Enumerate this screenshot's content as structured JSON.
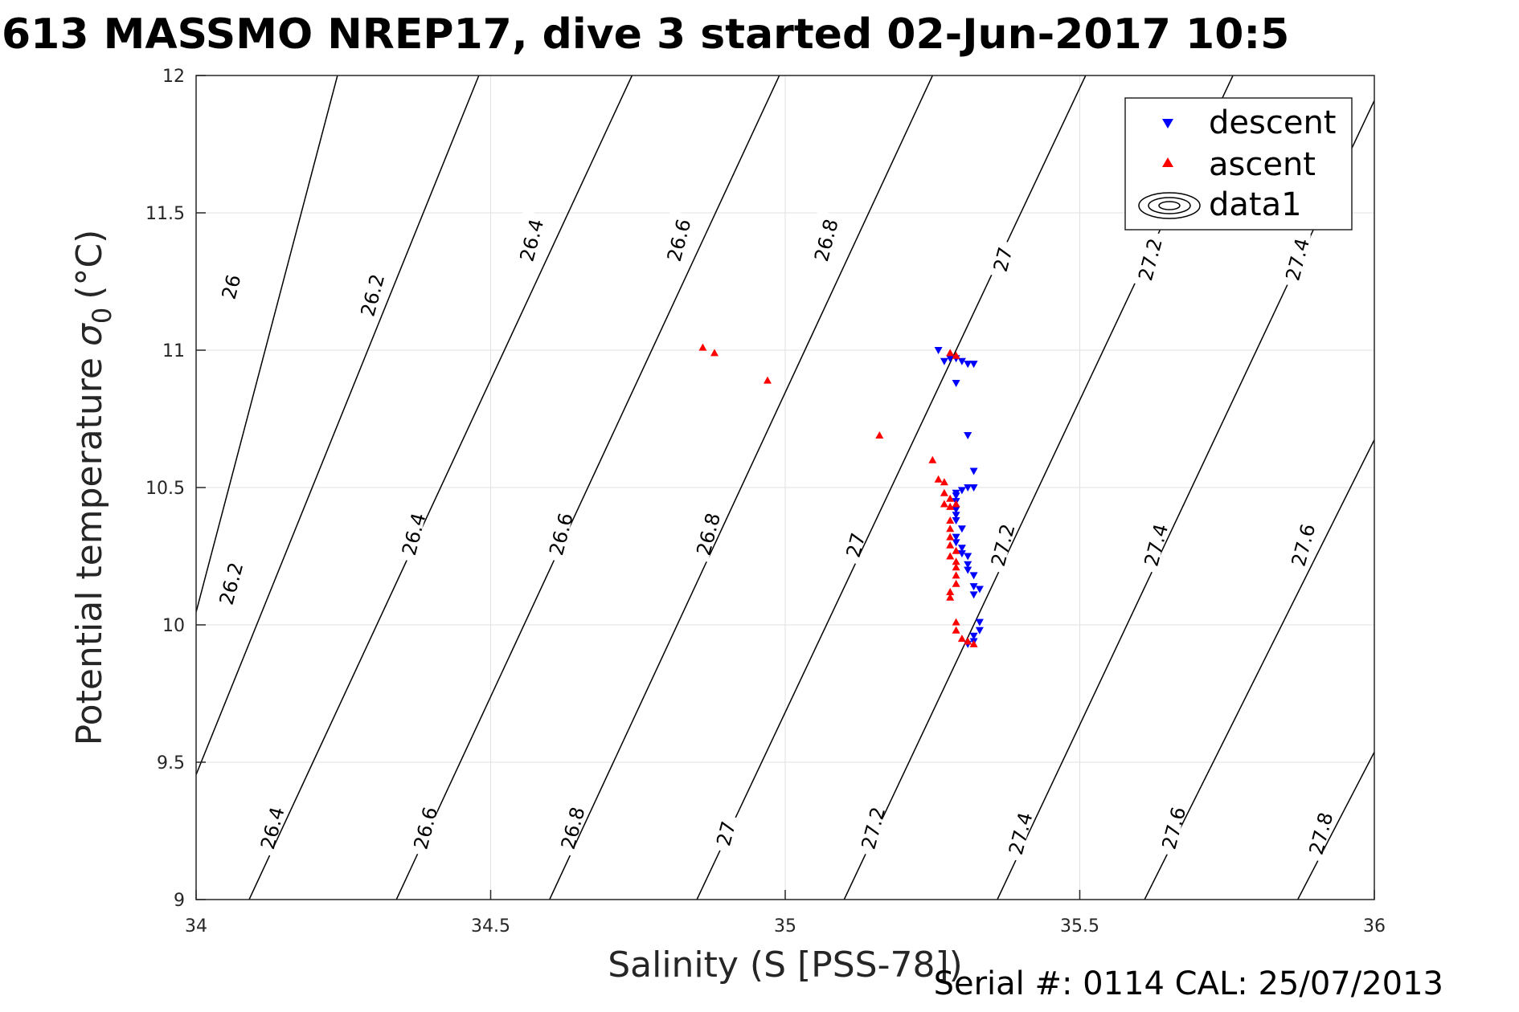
{
  "chart_data": {
    "type": "scatter",
    "title": "613 MASSMO NREP17, dive 3 started 02-Jun-2017 10:5",
    "xlabel": "Salinity (S [PSS-78])",
    "ylabel_main": "Potential temperature",
    "ylabel_sigma": "σ",
    "ylabel_sub": "0",
    "ylabel_unit": "(°C)",
    "footer": "Serial #: 0114  CAL: 25/07/2013",
    "xlim": [
      34,
      36
    ],
    "ylim": [
      9,
      12
    ],
    "xticks": [
      34,
      34.5,
      35,
      35.5,
      36
    ],
    "xtick_labels": [
      "34",
      "34.5",
      "35",
      "35.5",
      "36"
    ],
    "yticks": [
      9,
      9.5,
      10,
      10.5,
      11,
      11.5,
      12
    ],
    "ytick_labels": [
      "9",
      "9.5",
      "10",
      "10.5",
      "11",
      "11.5",
      "12"
    ],
    "grid": true,
    "legend_position": "top-right",
    "legend": [
      "descent",
      "ascent",
      "data1"
    ],
    "colors": {
      "descent": "#0000ff",
      "ascent": "#ff0000",
      "contour": "#000000",
      "grid": "#e0e0e0"
    },
    "contours": {
      "levels": [
        26,
        26.2,
        26.4,
        26.6,
        26.8,
        27,
        27.2,
        27.4,
        27.6,
        27.8
      ],
      "lines": [
        {
          "level": 26,
          "points": [
            [
              33.95,
              9.64
            ],
            [
              34.24,
              12
            ]
          ]
        },
        {
          "level": 26.2,
          "points": [
            [
              33.95,
              9.19
            ],
            [
              34.48,
              12
            ]
          ]
        },
        {
          "level": 26.4,
          "points": [
            [
              34.09,
              9
            ],
            [
              34.74,
              12
            ]
          ]
        },
        {
          "level": 26.6,
          "points": [
            [
              34.34,
              9
            ],
            [
              34.99,
              12
            ]
          ]
        },
        {
          "level": 26.8,
          "points": [
            [
              34.6,
              9
            ],
            [
              35.25,
              12
            ]
          ]
        },
        {
          "level": 27,
          "points": [
            [
              34.85,
              9
            ],
            [
              35.51,
              12
            ]
          ]
        },
        {
          "level": 27.2,
          "points": [
            [
              35.1,
              9
            ],
            [
              35.76,
              12
            ]
          ]
        },
        {
          "level": 27.4,
          "points": [
            [
              35.36,
              9
            ],
            [
              36.02,
              12
            ]
          ]
        },
        {
          "level": 27.6,
          "points": [
            [
              35.61,
              9
            ],
            [
              36.02,
              10.76
            ]
          ]
        },
        {
          "level": 27.8,
          "points": [
            [
              35.87,
              9
            ],
            [
              36.02,
              9.62
            ]
          ]
        }
      ],
      "labels": [
        {
          "text": "26",
          "x": 34.06,
          "y": 11.23
        },
        {
          "text": "26.2",
          "x": 34.3,
          "y": 11.2
        },
        {
          "text": "26.4",
          "x": 34.57,
          "y": 11.4
        },
        {
          "text": "26.6",
          "x": 34.82,
          "y": 11.4
        },
        {
          "text": "26.8",
          "x": 35.07,
          "y": 11.4
        },
        {
          "text": "27",
          "x": 35.37,
          "y": 11.33
        },
        {
          "text": "27.2",
          "x": 35.62,
          "y": 11.33
        },
        {
          "text": "27.4",
          "x": 35.87,
          "y": 11.33
        },
        {
          "text": "26.2",
          "x": 34.06,
          "y": 10.15
        },
        {
          "text": "26.4",
          "x": 34.37,
          "y": 10.33
        },
        {
          "text": "26.6",
          "x": 34.62,
          "y": 10.33
        },
        {
          "text": "26.8",
          "x": 34.87,
          "y": 10.33
        },
        {
          "text": "27",
          "x": 35.12,
          "y": 10.29
        },
        {
          "text": "27.2",
          "x": 35.37,
          "y": 10.29
        },
        {
          "text": "27.4",
          "x": 35.63,
          "y": 10.29
        },
        {
          "text": "27.6",
          "x": 35.88,
          "y": 10.29
        },
        {
          "text": "26.4",
          "x": 34.13,
          "y": 9.26
        },
        {
          "text": "26.6",
          "x": 34.39,
          "y": 9.26
        },
        {
          "text": "26.8",
          "x": 34.64,
          "y": 9.26
        },
        {
          "text": "27",
          "x": 34.9,
          "y": 9.24
        },
        {
          "text": "27.2",
          "x": 35.15,
          "y": 9.26
        },
        {
          "text": "27.4",
          "x": 35.4,
          "y": 9.24
        },
        {
          "text": "27.6",
          "x": 35.66,
          "y": 9.26
        },
        {
          "text": "27.8",
          "x": 35.91,
          "y": 9.24
        }
      ]
    },
    "series": [
      {
        "name": "descent",
        "marker": "triangle-down",
        "points": [
          [
            35.26,
            11.0
          ],
          [
            35.27,
            10.96
          ],
          [
            35.28,
            10.97
          ],
          [
            35.29,
            10.97
          ],
          [
            35.3,
            10.96
          ],
          [
            35.31,
            10.95
          ],
          [
            35.32,
            10.95
          ],
          [
            35.29,
            10.88
          ],
          [
            35.31,
            10.69
          ],
          [
            35.32,
            10.56
          ],
          [
            35.32,
            10.5
          ],
          [
            35.31,
            10.5
          ],
          [
            35.3,
            10.49
          ],
          [
            35.29,
            10.48
          ],
          [
            35.29,
            10.47
          ],
          [
            35.29,
            10.45
          ],
          [
            35.29,
            10.42
          ],
          [
            35.29,
            10.4
          ],
          [
            35.29,
            10.38
          ],
          [
            35.3,
            10.35
          ],
          [
            35.29,
            10.32
          ],
          [
            35.29,
            10.3
          ],
          [
            35.3,
            10.28
          ],
          [
            35.3,
            10.26
          ],
          [
            35.31,
            10.25
          ],
          [
            35.31,
            10.22
          ],
          [
            35.31,
            10.2
          ],
          [
            35.32,
            10.18
          ],
          [
            35.32,
            10.14
          ],
          [
            35.33,
            10.13
          ],
          [
            35.32,
            10.11
          ],
          [
            35.33,
            10.01
          ],
          [
            35.33,
            9.98
          ],
          [
            35.32,
            9.96
          ],
          [
            35.32,
            9.94
          ],
          [
            35.31,
            9.93
          ]
        ]
      },
      {
        "name": "ascent",
        "marker": "triangle-up",
        "points": [
          [
            34.86,
            11.01
          ],
          [
            34.88,
            10.99
          ],
          [
            34.97,
            10.89
          ],
          [
            35.16,
            10.69
          ],
          [
            35.25,
            10.6
          ],
          [
            35.26,
            10.53
          ],
          [
            35.27,
            10.52
          ],
          [
            35.27,
            10.48
          ],
          [
            35.28,
            10.46
          ],
          [
            35.27,
            10.44
          ],
          [
            35.28,
            10.43
          ],
          [
            35.29,
            10.44
          ],
          [
            35.28,
            10.38
          ],
          [
            35.28,
            10.35
          ],
          [
            35.28,
            10.32
          ],
          [
            35.28,
            10.29
          ],
          [
            35.29,
            10.27
          ],
          [
            35.28,
            10.25
          ],
          [
            35.29,
            10.23
          ],
          [
            35.29,
            10.21
          ],
          [
            35.29,
            10.18
          ],
          [
            35.29,
            10.15
          ],
          [
            35.28,
            10.12
          ],
          [
            35.28,
            10.1
          ],
          [
            35.29,
            10.01
          ],
          [
            35.29,
            9.98
          ],
          [
            35.3,
            9.95
          ],
          [
            35.31,
            9.94
          ],
          [
            35.32,
            9.93
          ],
          [
            35.28,
            10.99
          ],
          [
            35.29,
            10.98
          ]
        ]
      }
    ]
  }
}
